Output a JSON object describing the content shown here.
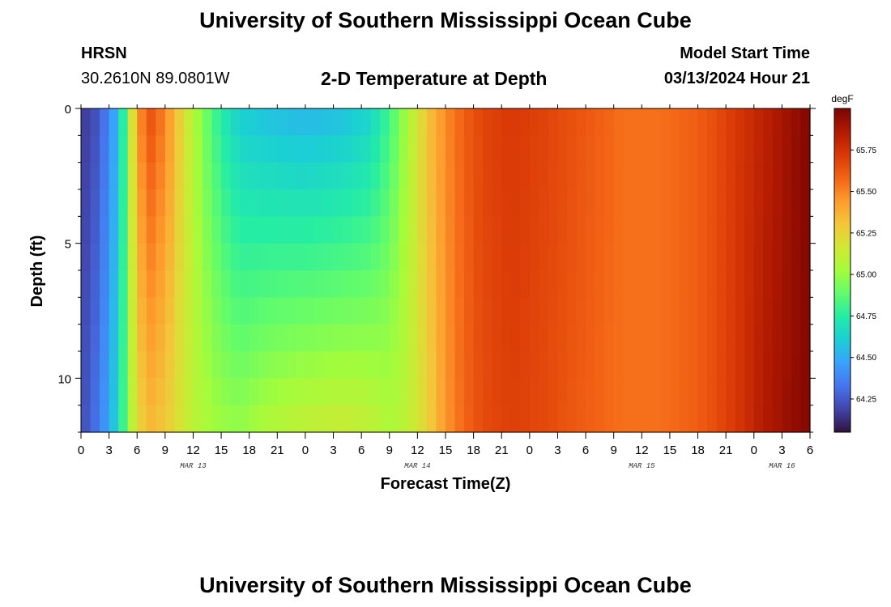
{
  "header": {
    "title": "University of Southern Mississippi Ocean Cube",
    "footer_title": "University of Southern Mississippi Ocean Cube",
    "station_code": "HRSN",
    "station_coords": "30.2610N  89.0801W",
    "plot_title": "2-D Temperature at Depth",
    "model_start_label": "Model Start Time",
    "model_start_value": "03/13/2024 Hour 21"
  },
  "chart_data": {
    "type": "heatmap",
    "title": "2-D Temperature at Depth",
    "xlabel": "Forecast Time(Z)",
    "ylabel": "Depth (ft)",
    "units": "degF",
    "x_tick_labels": [
      "0",
      "3",
      "6",
      "9",
      "12",
      "15",
      "18",
      "21",
      "0",
      "3",
      "6",
      "9",
      "12",
      "15",
      "18",
      "21",
      "0",
      "3",
      "6",
      "9",
      "12",
      "15",
      "18",
      "21",
      "0",
      "3",
      "6"
    ],
    "x_hours": [
      0,
      3,
      6,
      9,
      12,
      15,
      18,
      21,
      24,
      27,
      30,
      33,
      36,
      39,
      42,
      45,
      48,
      51,
      54,
      57,
      60,
      63,
      66,
      69,
      72,
      75,
      78
    ],
    "x_range_hours": [
      0,
      78
    ],
    "date_labels": [
      {
        "label": "MAR 13",
        "hour": 12
      },
      {
        "label": "MAR 14",
        "hour": 36
      },
      {
        "label": "MAR 15",
        "hour": 60
      },
      {
        "label": "MAR 16",
        "hour": 75
      }
    ],
    "y_tick_labels": [
      "0",
      "5",
      "10"
    ],
    "y_ticks": [
      0,
      5,
      10
    ],
    "y_range_ft": [
      0,
      12
    ],
    "depth_levels_ft": [
      0.5,
      1.5,
      2.5,
      3.5,
      4.5,
      5.5,
      6.5,
      7.5,
      8.5,
      9.5,
      10.5,
      11.5
    ],
    "color_range": [
      64.05,
      66.0
    ],
    "colorbar_ticks": [
      64.25,
      64.5,
      64.75,
      65.0,
      65.25,
      65.5,
      65.75
    ],
    "colorbar_tick_labels": [
      "64.25",
      "64.50",
      "64.75",
      "65.00",
      "65.25",
      "65.50",
      "65.75"
    ],
    "colormap": [
      "#30123b",
      "#4145ab",
      "#4675ed",
      "#39a2fc",
      "#1bcfd4",
      "#24eca6",
      "#61fc6c",
      "#a4fc3b",
      "#d1e834",
      "#f3c63a",
      "#fe9b2d",
      "#f36315",
      "#d93806",
      "#b11901",
      "#7a0402"
    ],
    "time_profile": [
      {
        "hour": 0,
        "surface": 64.15,
        "bottom": 64.2
      },
      {
        "hour": 2,
        "surface": 64.25,
        "bottom": 64.35
      },
      {
        "hour": 4,
        "surface": 64.55,
        "bottom": 64.65
      },
      {
        "hour": 5,
        "surface": 64.95,
        "bottom": 64.95
      },
      {
        "hour": 6,
        "surface": 65.45,
        "bottom": 65.25
      },
      {
        "hour": 7.5,
        "surface": 65.62,
        "bottom": 65.35
      },
      {
        "hour": 9,
        "surface": 65.5,
        "bottom": 65.3
      },
      {
        "hour": 11,
        "surface": 65.2,
        "bottom": 65.15
      },
      {
        "hour": 13,
        "surface": 64.95,
        "bottom": 65.05
      },
      {
        "hour": 15,
        "surface": 64.75,
        "bottom": 65.0
      },
      {
        "hour": 17,
        "surface": 64.62,
        "bottom": 64.98
      },
      {
        "hour": 20,
        "surface": 64.58,
        "bottom": 65.05
      },
      {
        "hour": 24,
        "surface": 64.55,
        "bottom": 65.1
      },
      {
        "hour": 28,
        "surface": 64.58,
        "bottom": 65.12
      },
      {
        "hour": 31,
        "surface": 64.65,
        "bottom": 65.1
      },
      {
        "hour": 33,
        "surface": 64.82,
        "bottom": 65.05
      },
      {
        "hour": 35,
        "surface": 65.05,
        "bottom": 65.1
      },
      {
        "hour": 37,
        "surface": 65.3,
        "bottom": 65.25
      },
      {
        "hour": 39,
        "surface": 65.48,
        "bottom": 65.45
      },
      {
        "hour": 41,
        "surface": 65.6,
        "bottom": 65.58
      },
      {
        "hour": 43,
        "surface": 65.68,
        "bottom": 65.66
      },
      {
        "hour": 46,
        "surface": 65.72,
        "bottom": 65.7
      },
      {
        "hour": 50,
        "surface": 65.68,
        "bottom": 65.66
      },
      {
        "hour": 54,
        "surface": 65.62,
        "bottom": 65.6
      },
      {
        "hour": 58,
        "surface": 65.55,
        "bottom": 65.55
      },
      {
        "hour": 62,
        "surface": 65.55,
        "bottom": 65.55
      },
      {
        "hour": 66,
        "surface": 65.6,
        "bottom": 65.6
      },
      {
        "hour": 70,
        "surface": 65.72,
        "bottom": 65.72
      },
      {
        "hour": 73,
        "surface": 65.82,
        "bottom": 65.85
      },
      {
        "hour": 76,
        "surface": 65.92,
        "bottom": 65.93
      },
      {
        "hour": 78,
        "surface": 65.98,
        "bottom": 65.98
      }
    ]
  }
}
